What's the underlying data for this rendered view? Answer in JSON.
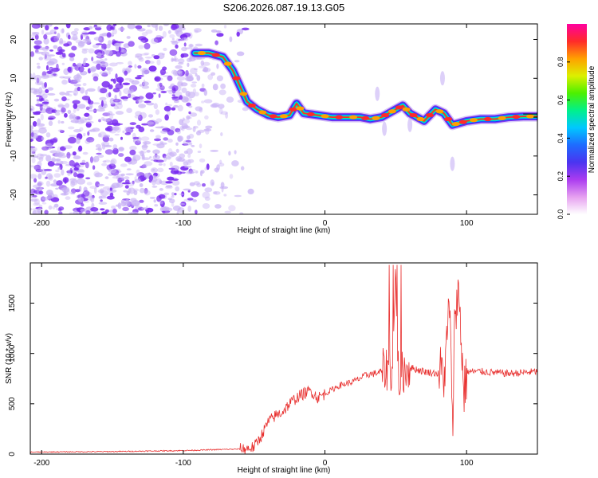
{
  "title": "S206.2026.087.19.13.G05",
  "colors": {
    "line": "#e8302f",
    "scatter": "#7a2cf0",
    "scatter_light": "#c7b0f5",
    "axis": "#000000",
    "frame": "#000000"
  },
  "chart_data": [
    {
      "type": "heatmap",
      "title": "S206.2026.087.19.13.G05",
      "xlabel": "Height of straight line (km)",
      "ylabel": "Frequency (Hz)",
      "xlim": [
        -208,
        150
      ],
      "ylim": [
        -25,
        24
      ],
      "xticks": [
        -200,
        -100,
        0,
        100
      ],
      "yticks": [
        20,
        10,
        0,
        -10,
        -20
      ],
      "colorbar": {
        "label": "Normalized spectral amplitude",
        "range": [
          0.0,
          1.0
        ],
        "ticks": [
          0.0,
          0.2,
          0.4,
          0.6,
          0.8
        ],
        "tick_labels": [
          "0.0",
          "0.2",
          "0.4",
          "0.6",
          "0.8"
        ],
        "colors": [
          "#ffffff",
          "#e6a0f0",
          "#ab3cf0",
          "#4a34f0",
          "#1e6cff",
          "#00c8ff",
          "#00f08c",
          "#4cf000",
          "#dcf000",
          "#ffa000",
          "#ff2a2a",
          "#ff00a0"
        ]
      },
      "ridge": {
        "description_free": true,
        "x": [
          -92,
          -82,
          -72,
          -65,
          -60,
          -55,
          -48,
          -40,
          -33,
          -25,
          -20,
          -15,
          -5,
          5,
          15,
          25,
          32,
          40,
          45,
          50,
          55,
          60,
          65,
          70,
          78,
          84,
          90,
          95,
          100,
          110,
          120,
          130,
          140,
          150
        ],
        "y": [
          16.5,
          16.5,
          15.5,
          12,
          8,
          4,
          2,
          0.5,
          0,
          0.5,
          3.5,
          1,
          0.5,
          0,
          0,
          0,
          -0.5,
          0,
          1,
          2,
          3,
          1,
          0,
          -1,
          2,
          1,
          -2,
          -1.5,
          -1,
          -0.5,
          -0.5,
          0,
          0.2,
          0.2
        ]
      }
    },
    {
      "type": "line",
      "xlabel": "Height of straight line (km)",
      "ylabel": "SNR (10 * v/v)",
      "xlim": [
        -208,
        150
      ],
      "ylim": [
        0,
        1900
      ],
      "xticks": [
        -200,
        -100,
        0,
        100
      ],
      "yticks": [
        0,
        500,
        1000,
        1500
      ],
      "series": [
        {
          "name": "SNR",
          "x": [
            -208,
            -150,
            -100,
            -75,
            -60,
            -55,
            -50,
            -45,
            -40,
            -35,
            -30,
            -25,
            -20,
            -15,
            -10,
            -5,
            0,
            10,
            20,
            30,
            35,
            40,
            45,
            48,
            50,
            52,
            55,
            60,
            65,
            70,
            75,
            80,
            85,
            88,
            90,
            92,
            95,
            98,
            100,
            110,
            120,
            130,
            140,
            150
          ],
          "y": [
            20,
            25,
            35,
            45,
            50,
            55,
            70,
            180,
            320,
            380,
            420,
            500,
            560,
            600,
            630,
            560,
            600,
            680,
            720,
            790,
            800,
            820,
            860,
            800,
            1880,
            700,
            820,
            860,
            840,
            820,
            810,
            800,
            820,
            1560,
            180,
            1540,
            1540,
            600,
            820,
            820,
            810,
            800,
            810,
            820
          ]
        }
      ]
    }
  ]
}
